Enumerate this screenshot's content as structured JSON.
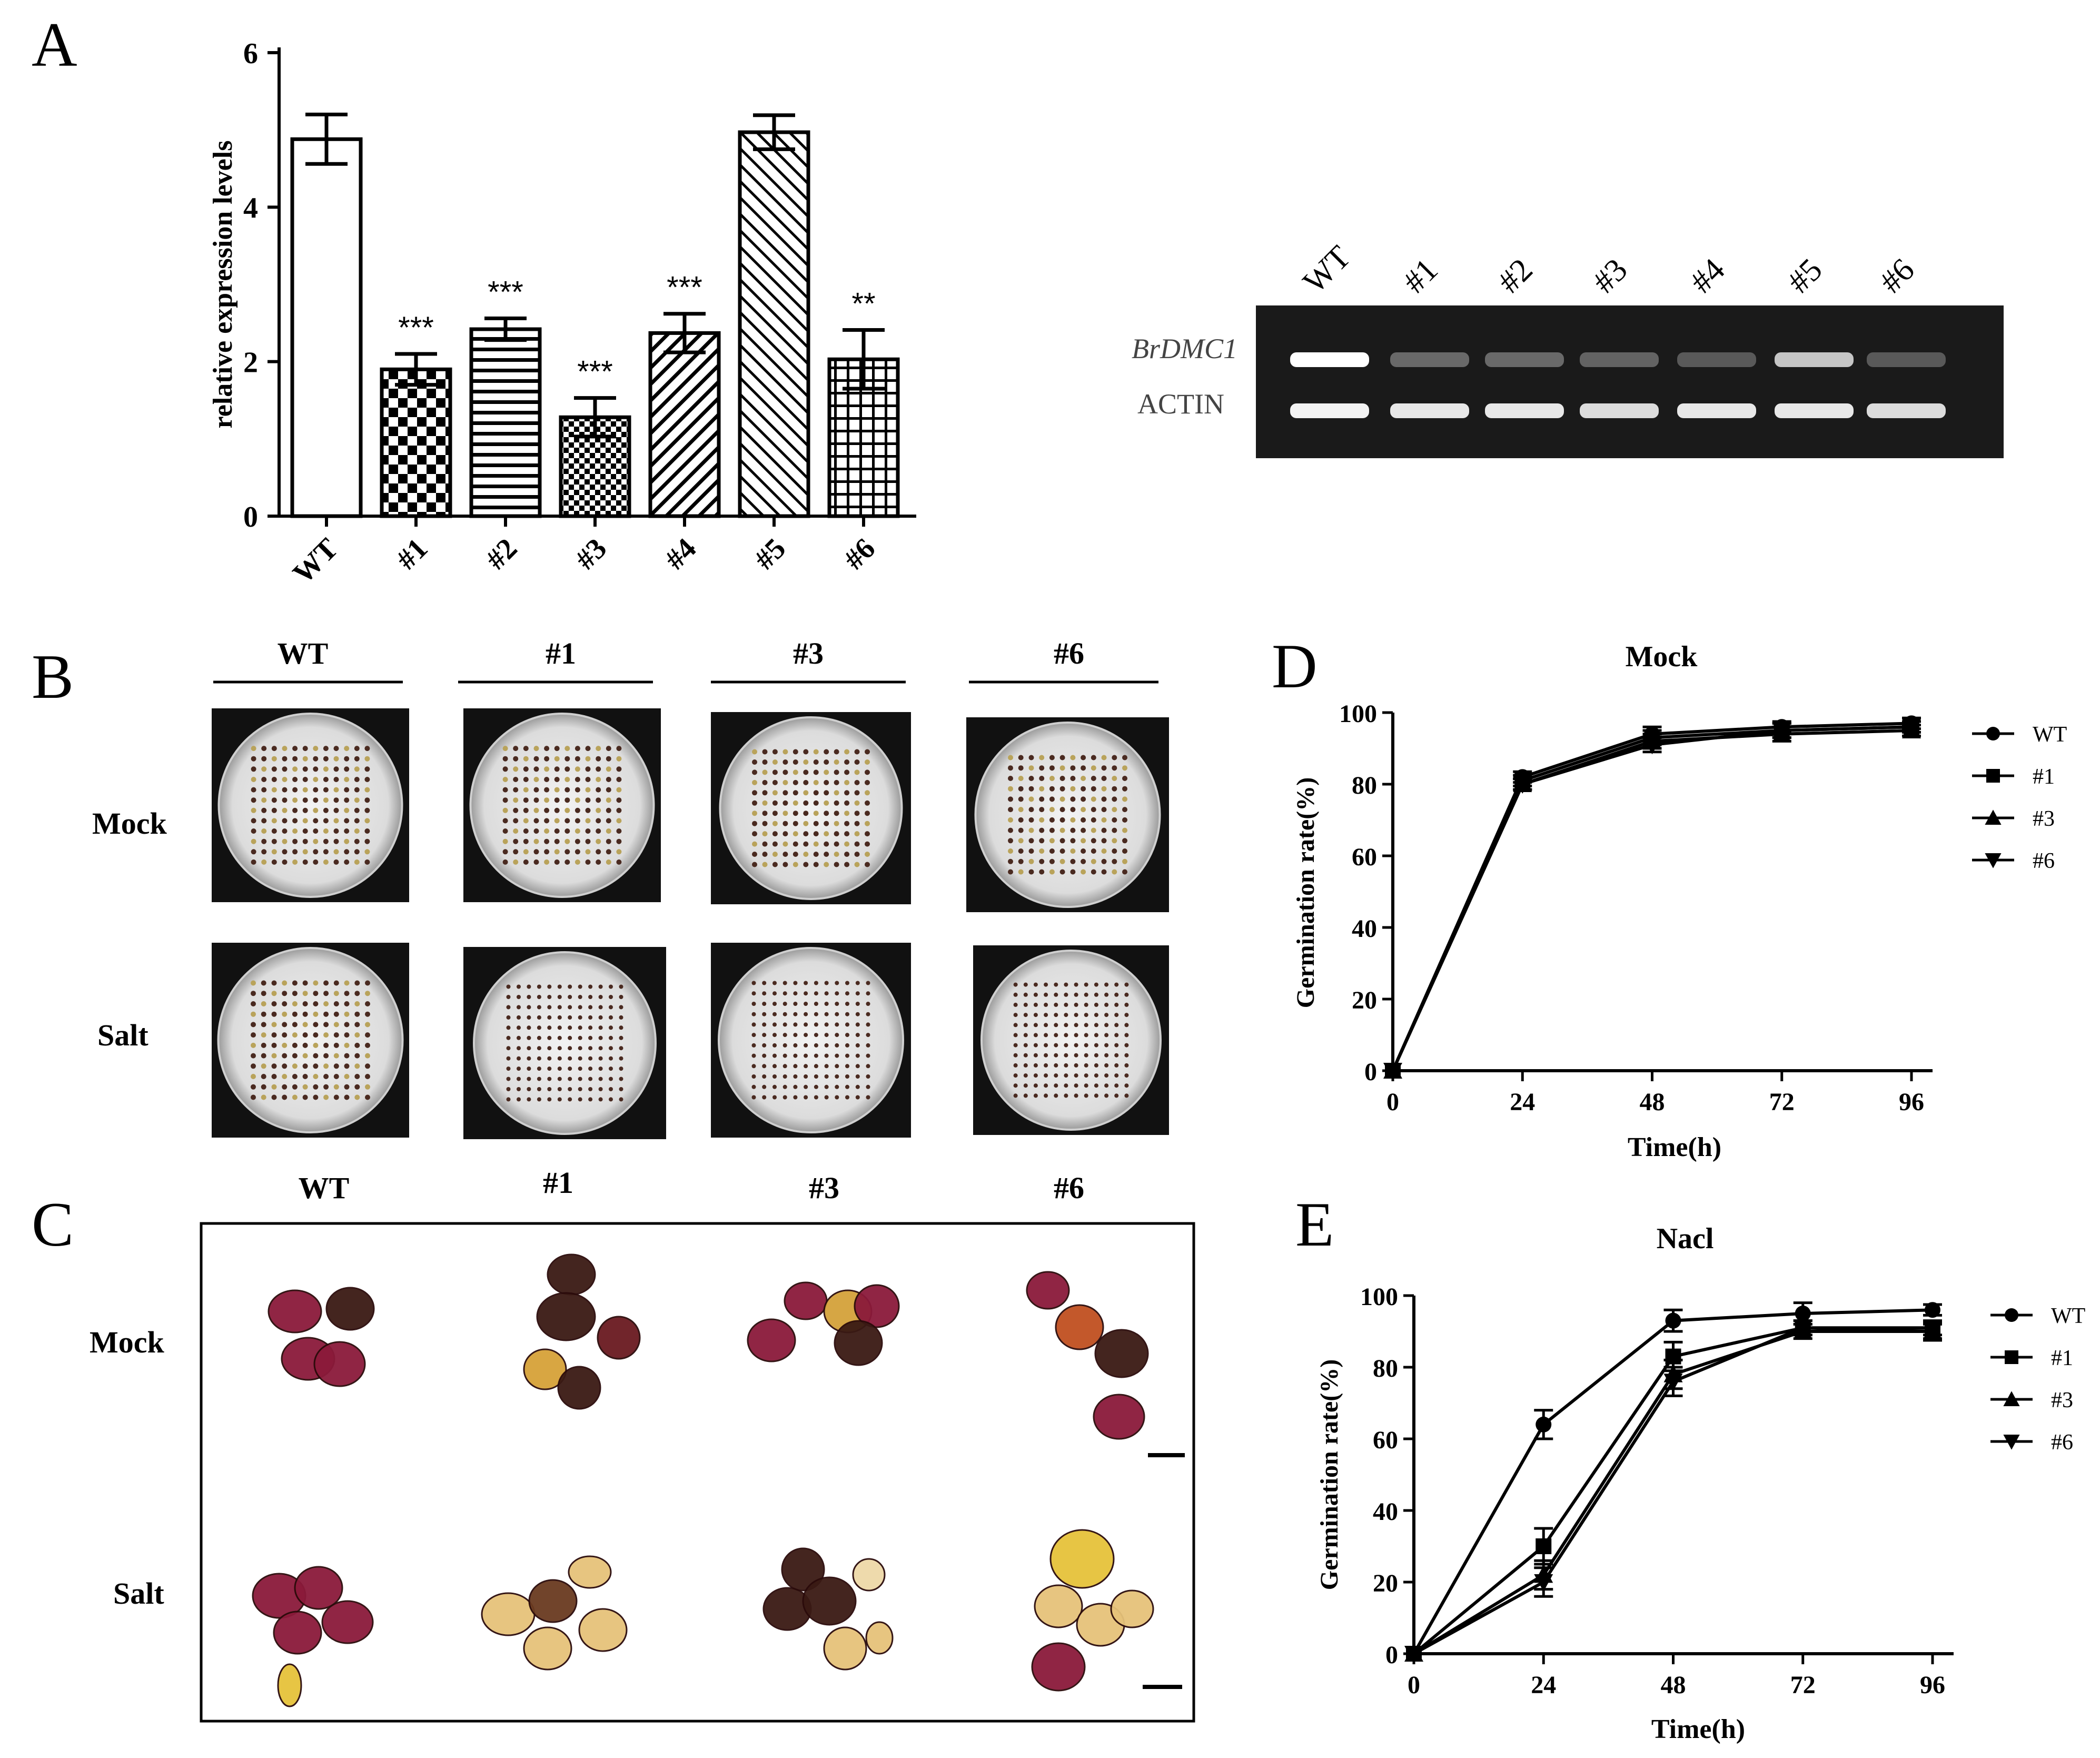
{
  "panels": {
    "a": {
      "label": "A"
    },
    "b": {
      "label": "B",
      "col_labels": [
        "WT",
        "#1",
        "#3",
        "#6"
      ],
      "row_labels": [
        "Mock",
        "Salt"
      ]
    },
    "c": {
      "label": "C",
      "col_labels": [
        "WT",
        "#1",
        "#3",
        "#6"
      ],
      "row_labels": [
        "Mock",
        "Salt"
      ]
    },
    "d": {
      "label": "D"
    },
    "e": {
      "label": "E"
    }
  },
  "gel": {
    "lanes": [
      "WT",
      "#1",
      "#2",
      "#3",
      "#4",
      "#5",
      "#6"
    ],
    "bands": [
      {
        "name": "BrDMC1",
        "intensity": [
          1.0,
          0.35,
          0.35,
          0.32,
          0.28,
          0.75,
          0.28
        ]
      },
      {
        "name": "ACTIN",
        "intensity": [
          0.95,
          0.9,
          0.9,
          0.85,
          0.9,
          0.9,
          0.85
        ]
      }
    ]
  },
  "colors": {
    "ink": "#000000",
    "gel_bg": "#1a1a1a",
    "plate": "#e8e8e8",
    "seed_red": "#8b1a3a",
    "seed_dark": "#3a1a14",
    "seed_pale": "#e6c27a"
  },
  "chart_data": [
    {
      "type": "bar",
      "title": "",
      "xlabel": "",
      "ylabel": "relative expression levels",
      "ylim": [
        0,
        6
      ],
      "yticks": [
        0,
        2,
        4,
        6
      ],
      "categories": [
        "WT",
        "#1",
        "#2",
        "#3",
        "#4",
        "#5",
        "#6"
      ],
      "values": [
        4.88,
        1.9,
        2.42,
        1.28,
        2.37,
        4.97,
        2.03
      ],
      "errors": [
        0.32,
        0.2,
        0.14,
        0.25,
        0.25,
        0.22,
        0.38
      ],
      "significance": [
        "",
        "***",
        "***",
        "***",
        "***",
        "",
        "**"
      ],
      "patterns": [
        "none",
        "checker",
        "horizontal",
        "smallchecker",
        "diagonal",
        "backdiagonal",
        "grid"
      ]
    },
    {
      "type": "line",
      "title": "Mock",
      "xlabel": "Time(h)",
      "ylabel": "Germination rate(%)",
      "ylim": [
        0,
        100
      ],
      "yticks": [
        0,
        20,
        40,
        60,
        80,
        100
      ],
      "x": [
        0,
        24,
        48,
        72,
        96
      ],
      "series": [
        {
          "name": "WT",
          "marker": "circle",
          "values": [
            0,
            82,
            94,
            96,
            97
          ],
          "errors": [
            0,
            1.5,
            2,
            1.5,
            1.5
          ]
        },
        {
          "name": "#1",
          "marker": "square",
          "values": [
            0,
            81,
            93,
            95,
            96
          ],
          "errors": [
            0,
            1.5,
            2,
            2,
            1.5
          ]
        },
        {
          "name": "#3",
          "marker": "triangle-up",
          "values": [
            0,
            80,
            92,
            94,
            95
          ],
          "errors": [
            0,
            1.5,
            2,
            2,
            1.5
          ]
        },
        {
          "name": "#6",
          "marker": "triangle-down",
          "values": [
            0,
            80,
            91,
            95,
            96
          ],
          "errors": [
            0,
            1.5,
            2,
            2,
            1.5
          ]
        }
      ]
    },
    {
      "type": "line",
      "title": "Nacl",
      "xlabel": "Time(h)",
      "ylabel": "Germination rate(%)",
      "ylim": [
        0,
        100
      ],
      "yticks": [
        0,
        20,
        40,
        60,
        80,
        100
      ],
      "x": [
        0,
        24,
        48,
        72,
        96
      ],
      "series": [
        {
          "name": "WT",
          "marker": "circle",
          "values": [
            0,
            64,
            93,
            95,
            96
          ],
          "errors": [
            0,
            4,
            3,
            3,
            1.5
          ]
        },
        {
          "name": "#1",
          "marker": "square",
          "values": [
            0,
            30,
            83,
            91,
            90
          ],
          "errors": [
            0,
            5,
            4,
            2,
            2.5
          ]
        },
        {
          "name": "#3",
          "marker": "triangle-up",
          "values": [
            0,
            22,
            78,
            90,
            90
          ],
          "errors": [
            0,
            4,
            4,
            2,
            2
          ]
        },
        {
          "name": "#6",
          "marker": "triangle-down",
          "values": [
            0,
            20,
            76,
            91,
            91
          ],
          "errors": [
            0,
            4,
            4,
            2,
            2
          ]
        }
      ]
    }
  ]
}
